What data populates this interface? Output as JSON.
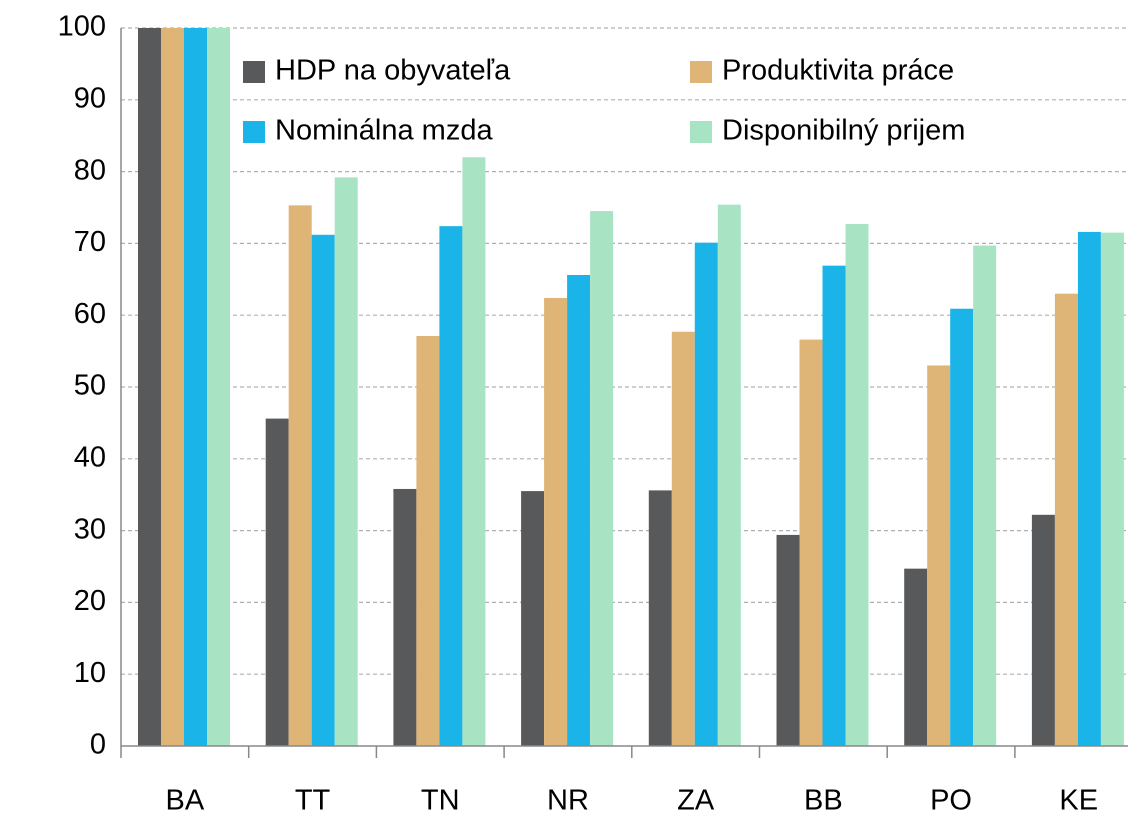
{
  "chart_data": {
    "type": "bar",
    "categories": [
      "BA",
      "TT",
      "TN",
      "NR",
      "ZA",
      "BB",
      "PO",
      "KE"
    ],
    "series": [
      {
        "name": "HDP na obyvateľa",
        "color": "#58595b",
        "values": [
          100,
          45.6,
          35.8,
          35.5,
          35.6,
          29.4,
          24.7,
          32.2
        ]
      },
      {
        "name": "Produktivita práce",
        "color": "#deb477",
        "values": [
          100,
          75.3,
          57.1,
          62.4,
          57.7,
          56.6,
          53.0,
          63.0
        ]
      },
      {
        "name": "Nominálna mzda",
        "color": "#1ab4e8",
        "values": [
          100,
          71.2,
          72.4,
          65.6,
          70.1,
          66.9,
          60.9,
          71.6
        ]
      },
      {
        "name": "Disponibilný prijem",
        "color": "#a8e4c4",
        "values": [
          100,
          79.2,
          82.0,
          74.5,
          75.4,
          72.7,
          69.7,
          71.5
        ]
      }
    ],
    "ylim": [
      0,
      100
    ],
    "yticks": [
      0,
      10,
      20,
      30,
      40,
      50,
      60,
      70,
      80,
      90,
      100
    ],
    "grid": true,
    "legend": "top"
  }
}
